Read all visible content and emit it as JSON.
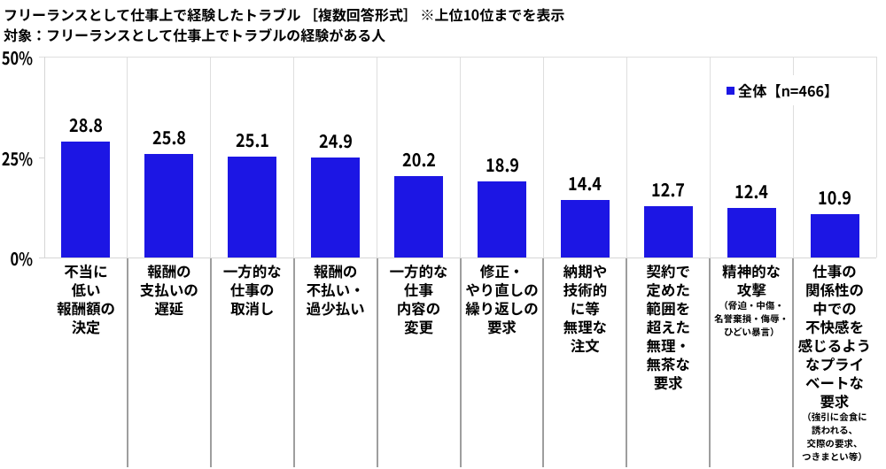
{
  "title": {
    "line1": "フリーランスとして仕事上で経験したトラブル ［複数回答形式］ ※上位10位までを表示",
    "line2": "対象：フリーランスとして仕事上でトラブルの経験がある人"
  },
  "legend": {
    "label": "全体【n=466】",
    "marker_color": "#1C16E4"
  },
  "chart_data": {
    "type": "bar",
    "title": "フリーランスとして仕事上で経験したトラブル ［複数回答形式］ ※上位10位までを表示",
    "subtitle": "対象：フリーランスとして仕事上でトラブルの経験がある人",
    "legend": "全体【n=466】",
    "ylabel": "%",
    "ylim": [
      0,
      50
    ],
    "yticks": [
      {
        "label": "50%",
        "value": 50
      },
      {
        "label": "25%",
        "value": 25
      },
      {
        "label": "0%",
        "value": 0
      }
    ],
    "grid": "vertical-category-separators",
    "legend_position": "top-right-inside",
    "bar_color": "#1C16E4",
    "categories": [
      {
        "lines": [
          "不当に",
          "低い",
          "報酬額の",
          "決定"
        ]
      },
      {
        "lines": [
          "報酬の",
          "支払いの",
          "遅延"
        ]
      },
      {
        "lines": [
          "一方的な",
          "仕事の",
          "取消し"
        ]
      },
      {
        "lines": [
          "報酬の",
          "不払い・",
          "過少払い"
        ]
      },
      {
        "lines": [
          "一方的な",
          "仕事",
          "内容の",
          "変更"
        ]
      },
      {
        "lines": [
          "修正・",
          "やり直しの",
          "繰り返しの",
          "要求"
        ]
      },
      {
        "lines": [
          "納期や",
          "技術的",
          "に等",
          "無理な",
          "注文"
        ]
      },
      {
        "lines": [
          "契約で",
          "定めた",
          "範囲を",
          "超えた",
          "無理・",
          "無茶な",
          "要求"
        ]
      },
      {
        "lines": [
          "精神的な",
          "攻撃"
        ],
        "note_lines": [
          "（脅迫・中傷・",
          "名誉棄損・侮辱・",
          "ひどい暴言）"
        ]
      },
      {
        "lines": [
          "仕事の",
          "関係性の",
          "中での",
          "不快感を",
          "感じるよう",
          "なプライ",
          "ベートな",
          "要求"
        ],
        "note_lines": [
          "（強引に会食に",
          "誘われる、",
          "交際の要求、",
          "つきまとい等）"
        ]
      }
    ],
    "values": [
      28.8,
      25.8,
      25.1,
      24.9,
      20.2,
      18.9,
      14.4,
      12.7,
      12.4,
      10.9
    ],
    "value_labels": [
      "28.8",
      "25.8",
      "25.1",
      "24.9",
      "20.2",
      "18.9",
      "14.4",
      "12.7",
      "12.4",
      "10.9"
    ]
  }
}
